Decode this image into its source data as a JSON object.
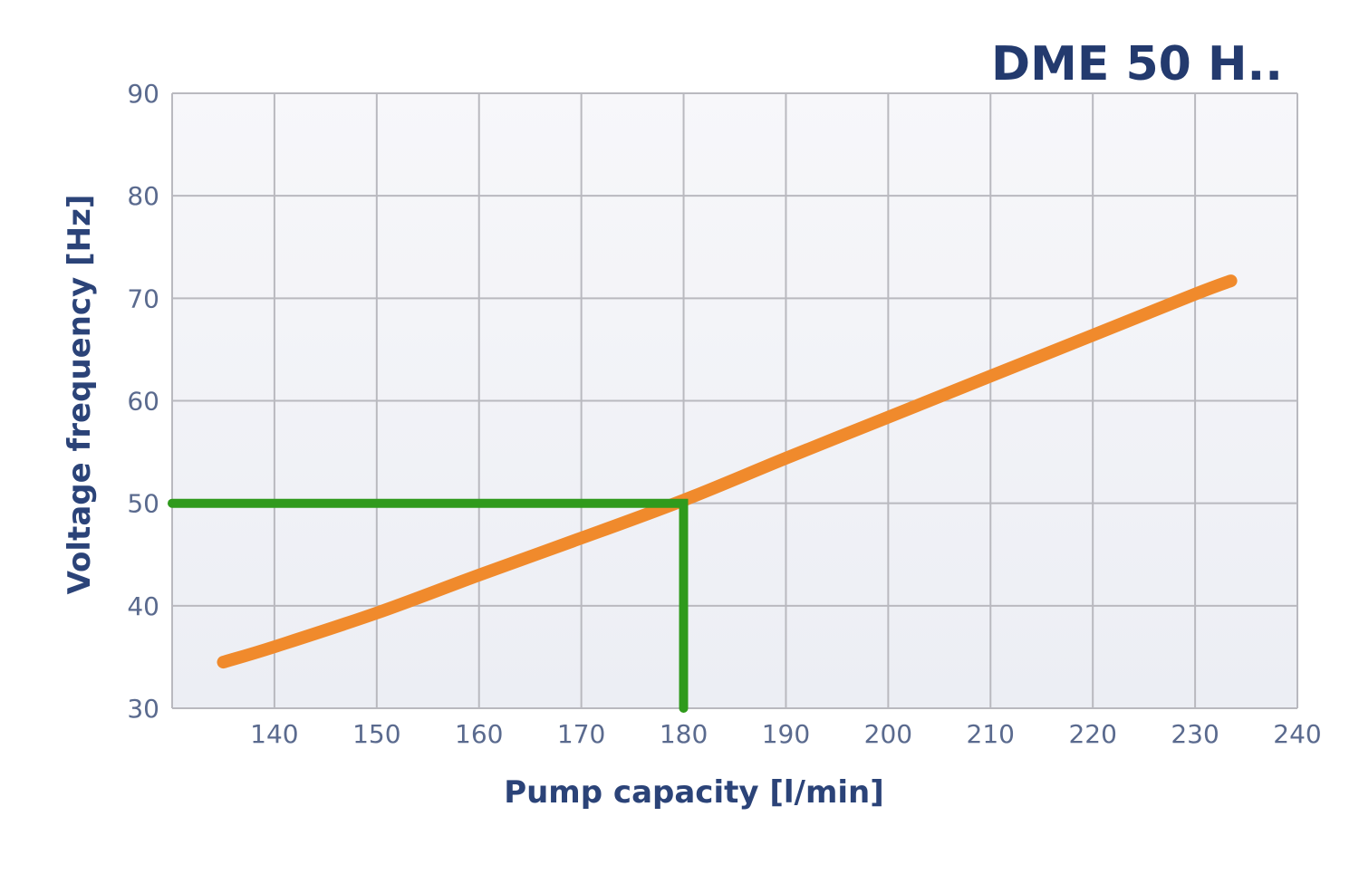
{
  "chart_data": {
    "type": "line",
    "title": "DME 50 H..",
    "xlabel": "Pump capacity [l/min]",
    "ylabel": "Voltage frequency [Hz]",
    "xlim": [
      130,
      240
    ],
    "ylim": [
      30,
      90
    ],
    "x_ticks": [
      140,
      150,
      160,
      170,
      180,
      190,
      200,
      210,
      220,
      230,
      240
    ],
    "y_ticks": [
      30,
      40,
      50,
      60,
      70,
      80,
      90
    ],
    "grid": true,
    "series": [
      {
        "role": "curve",
        "color": "#f08a2c",
        "x": [
          135,
          140,
          150,
          160,
          170,
          180,
          190,
          200,
          210,
          220,
          230,
          233.5
        ],
        "y": [
          34.5,
          36.0,
          39.3,
          43.0,
          46.6,
          50.3,
          54.4,
          58.4,
          62.4,
          66.4,
          70.4,
          71.7
        ]
      },
      {
        "role": "operating-point-marker",
        "color": "#2f9a1c",
        "x": [
          130,
          180,
          180
        ],
        "y": [
          50,
          50,
          30
        ]
      }
    ]
  },
  "colors": {
    "title": "#233a6e",
    "axis_title": "#2b4378",
    "tick_label": "#5a6a8e",
    "grid": "#b9b9bf",
    "plot_bg_top": "#f7f7fa",
    "plot_bg_bottom": "#eceef4"
  }
}
